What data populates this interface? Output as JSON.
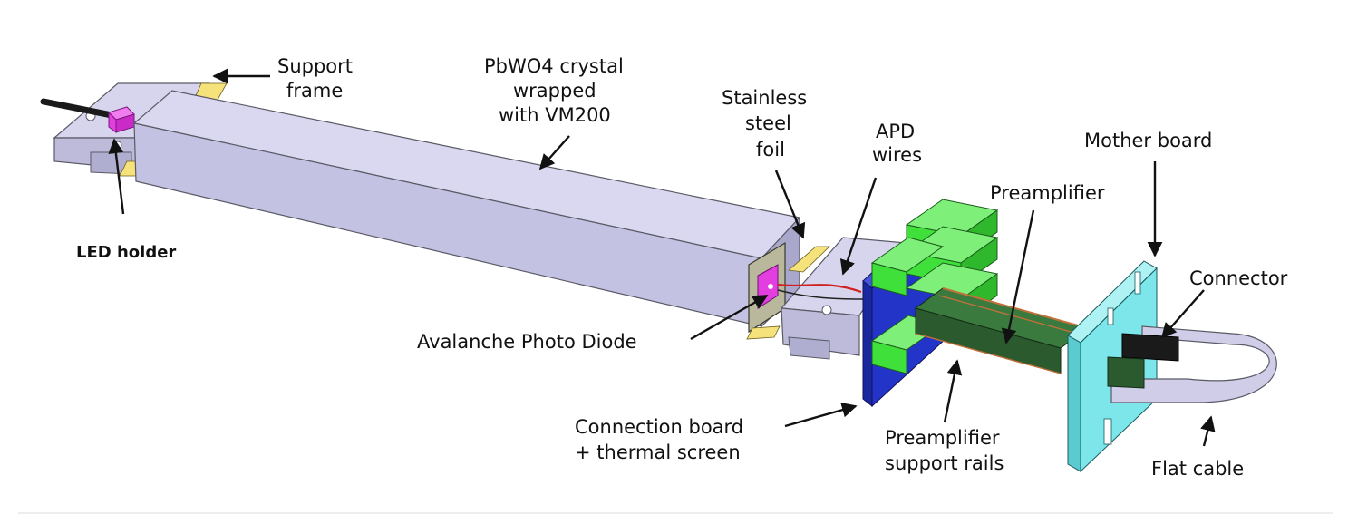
{
  "diagram": {
    "labels": {
      "support_frame": [
        "Support",
        "frame"
      ],
      "crystal": [
        "PbWO4 crystal",
        "wrapped",
        "with VM200"
      ],
      "stainless": [
        "Stainless",
        "steel",
        "foil"
      ],
      "apd_wires": [
        "APD",
        "wires"
      ],
      "mother_board": "Mother board",
      "preamplifier": "Preamplifier",
      "connector": "Connector",
      "led_holder": "LED holder",
      "apd": "Avalanche Photo Diode",
      "connection_board": [
        "Connection board",
        "+ thermal screen"
      ],
      "preamp_rails": [
        "Preamplifier",
        "support rails"
      ],
      "flat_cable": "Flat cable"
    },
    "colors": {
      "crystal": "#c9c7e6",
      "frame": "#cfcde8",
      "led": "#e23ee0",
      "apd": "#e23ee0",
      "tape": "#f5e27a",
      "connection_board": "#2335c8",
      "preamp_green": "#3fe03a",
      "preamp_board": "#2a5a2e",
      "mother_board": "#7de6ea",
      "connector": "#1a1a1a",
      "cable": "#cfcde8",
      "wire": "#d22020"
    }
  }
}
